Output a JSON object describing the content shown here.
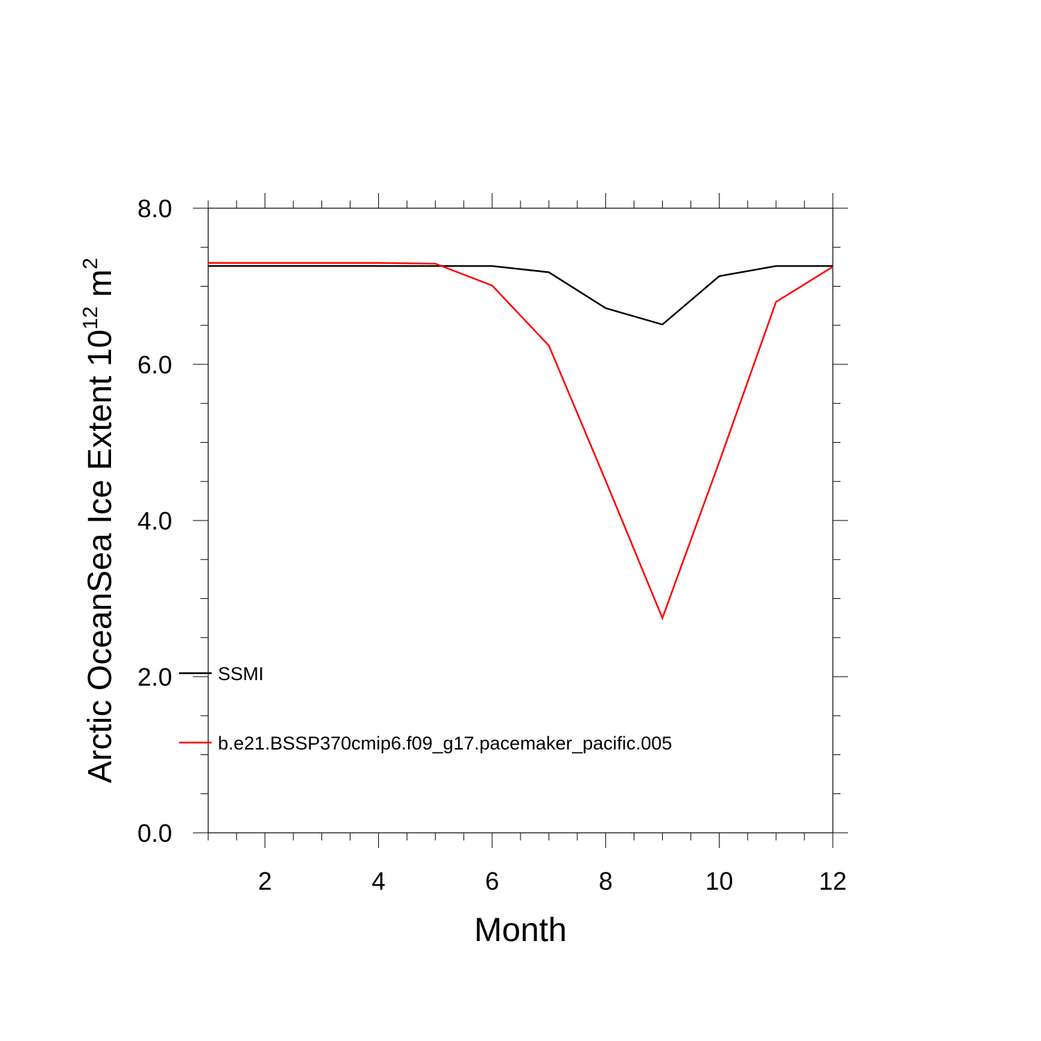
{
  "chart_data": {
    "type": "line",
    "title": "",
    "xlabel": "Month",
    "ylabel": {
      "text": "Arctic OceanSea Ice Extent 10",
      "exponent": "12",
      "unit": "m",
      "unit_exponent": "2"
    },
    "xlim": [
      1,
      12
    ],
    "ylim": [
      0,
      8
    ],
    "x_ticks": [
      2,
      4,
      6,
      8,
      10,
      12
    ],
    "x_tick_labels": [
      "2",
      "4",
      "6",
      "8",
      "10",
      "12"
    ],
    "y_ticks": [
      0,
      2,
      4,
      6,
      8
    ],
    "y_tick_labels": [
      "0.0",
      "2.0",
      "4.0",
      "6.0",
      "8.0"
    ],
    "x": [
      1,
      2,
      3,
      4,
      5,
      6,
      7,
      8,
      9,
      10,
      11,
      12
    ],
    "series": [
      {
        "name": "SSMI",
        "color": "#000000",
        "values": [
          7.26,
          7.26,
          7.26,
          7.26,
          7.26,
          7.26,
          7.18,
          6.72,
          6.51,
          7.13,
          7.26,
          7.26
        ]
      },
      {
        "name": "b.e21.BSSP370cmip6.f09_g17.pacemaker_pacific.005",
        "color": "#ff0000",
        "values": [
          7.3,
          7.3,
          7.3,
          7.3,
          7.29,
          7.01,
          6.24,
          4.51,
          2.75,
          4.75,
          6.8,
          7.25
        ]
      }
    ],
    "grid": false,
    "legend_position": "lower-left"
  }
}
